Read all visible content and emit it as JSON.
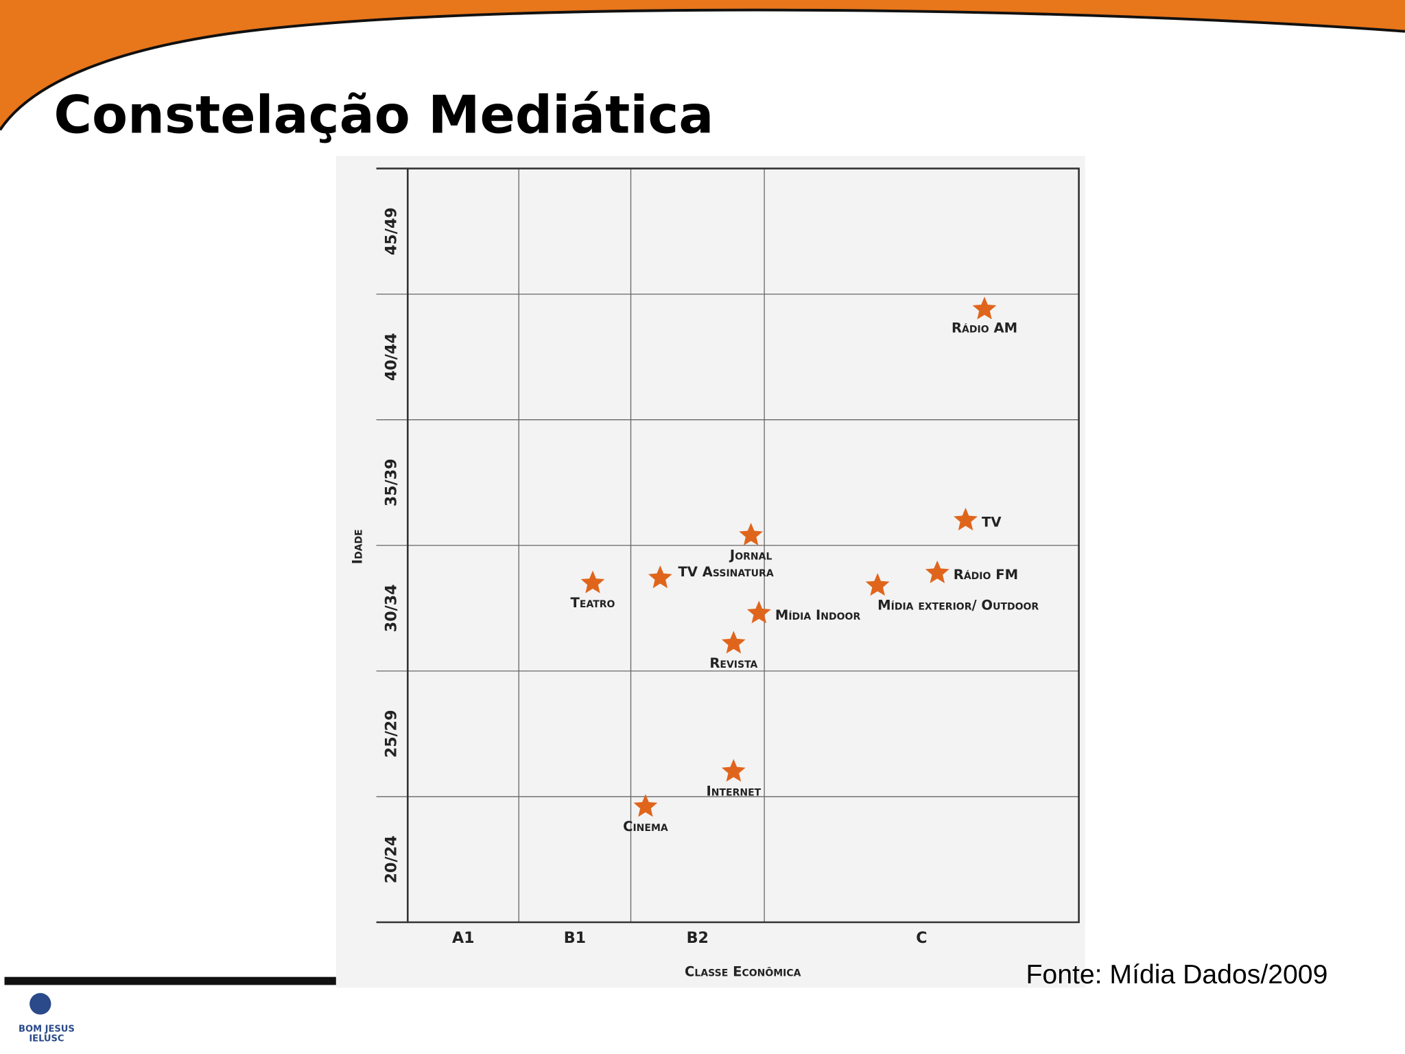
{
  "slide": {
    "title": "Constelação Mediática",
    "source": "Fonte: Mídia Dados/2009",
    "logo": [
      "BOM JESUS",
      "IELUSC"
    ]
  },
  "chart_data": {
    "type": "scatter",
    "x_label": "Classe Econômica",
    "y_label": "Idade",
    "xlim": [
      0,
      4
    ],
    "xticks": [
      {
        "value": 0.5,
        "label": "A1"
      },
      {
        "value": 1.5,
        "label": "B1"
      },
      {
        "value": 2.5,
        "label": "B2"
      },
      {
        "value": 3.5,
        "label": "C"
      }
    ],
    "xgrid": [
      1,
      2,
      3
    ],
    "ylim": [
      20,
      50
    ],
    "yticks": [
      {
        "value": 22.5,
        "label": "20/24"
      },
      {
        "value": 27.5,
        "label": "25/29"
      },
      {
        "value": 32.5,
        "label": "30/34"
      },
      {
        "value": 37.5,
        "label": "35/39"
      },
      {
        "value": 42.5,
        "label": "40/44"
      },
      {
        "value": 47.5,
        "label": "45/49"
      }
    ],
    "ygrid": [
      25,
      30,
      35,
      40,
      45
    ],
    "color": "#e0651c",
    "labels": [
      "Rádio AM",
      "TV",
      "Jornal",
      "Rádio FM",
      "TV Assinatura",
      "Teatro",
      "Mídia exterior/ Outdoor",
      "Mídia Indoor",
      "Revista",
      "Internet",
      "Cinema"
    ],
    "x": [
      3.7,
      3.64,
      2.9,
      3.55,
      2.22,
      1.66,
      3.36,
      2.96,
      2.77,
      2.77,
      2.11
    ],
    "values": [
      44.4,
      36.0,
      35.4,
      33.9,
      33.7,
      33.5,
      33.4,
      32.3,
      31.1,
      26.0,
      24.6
    ]
  }
}
